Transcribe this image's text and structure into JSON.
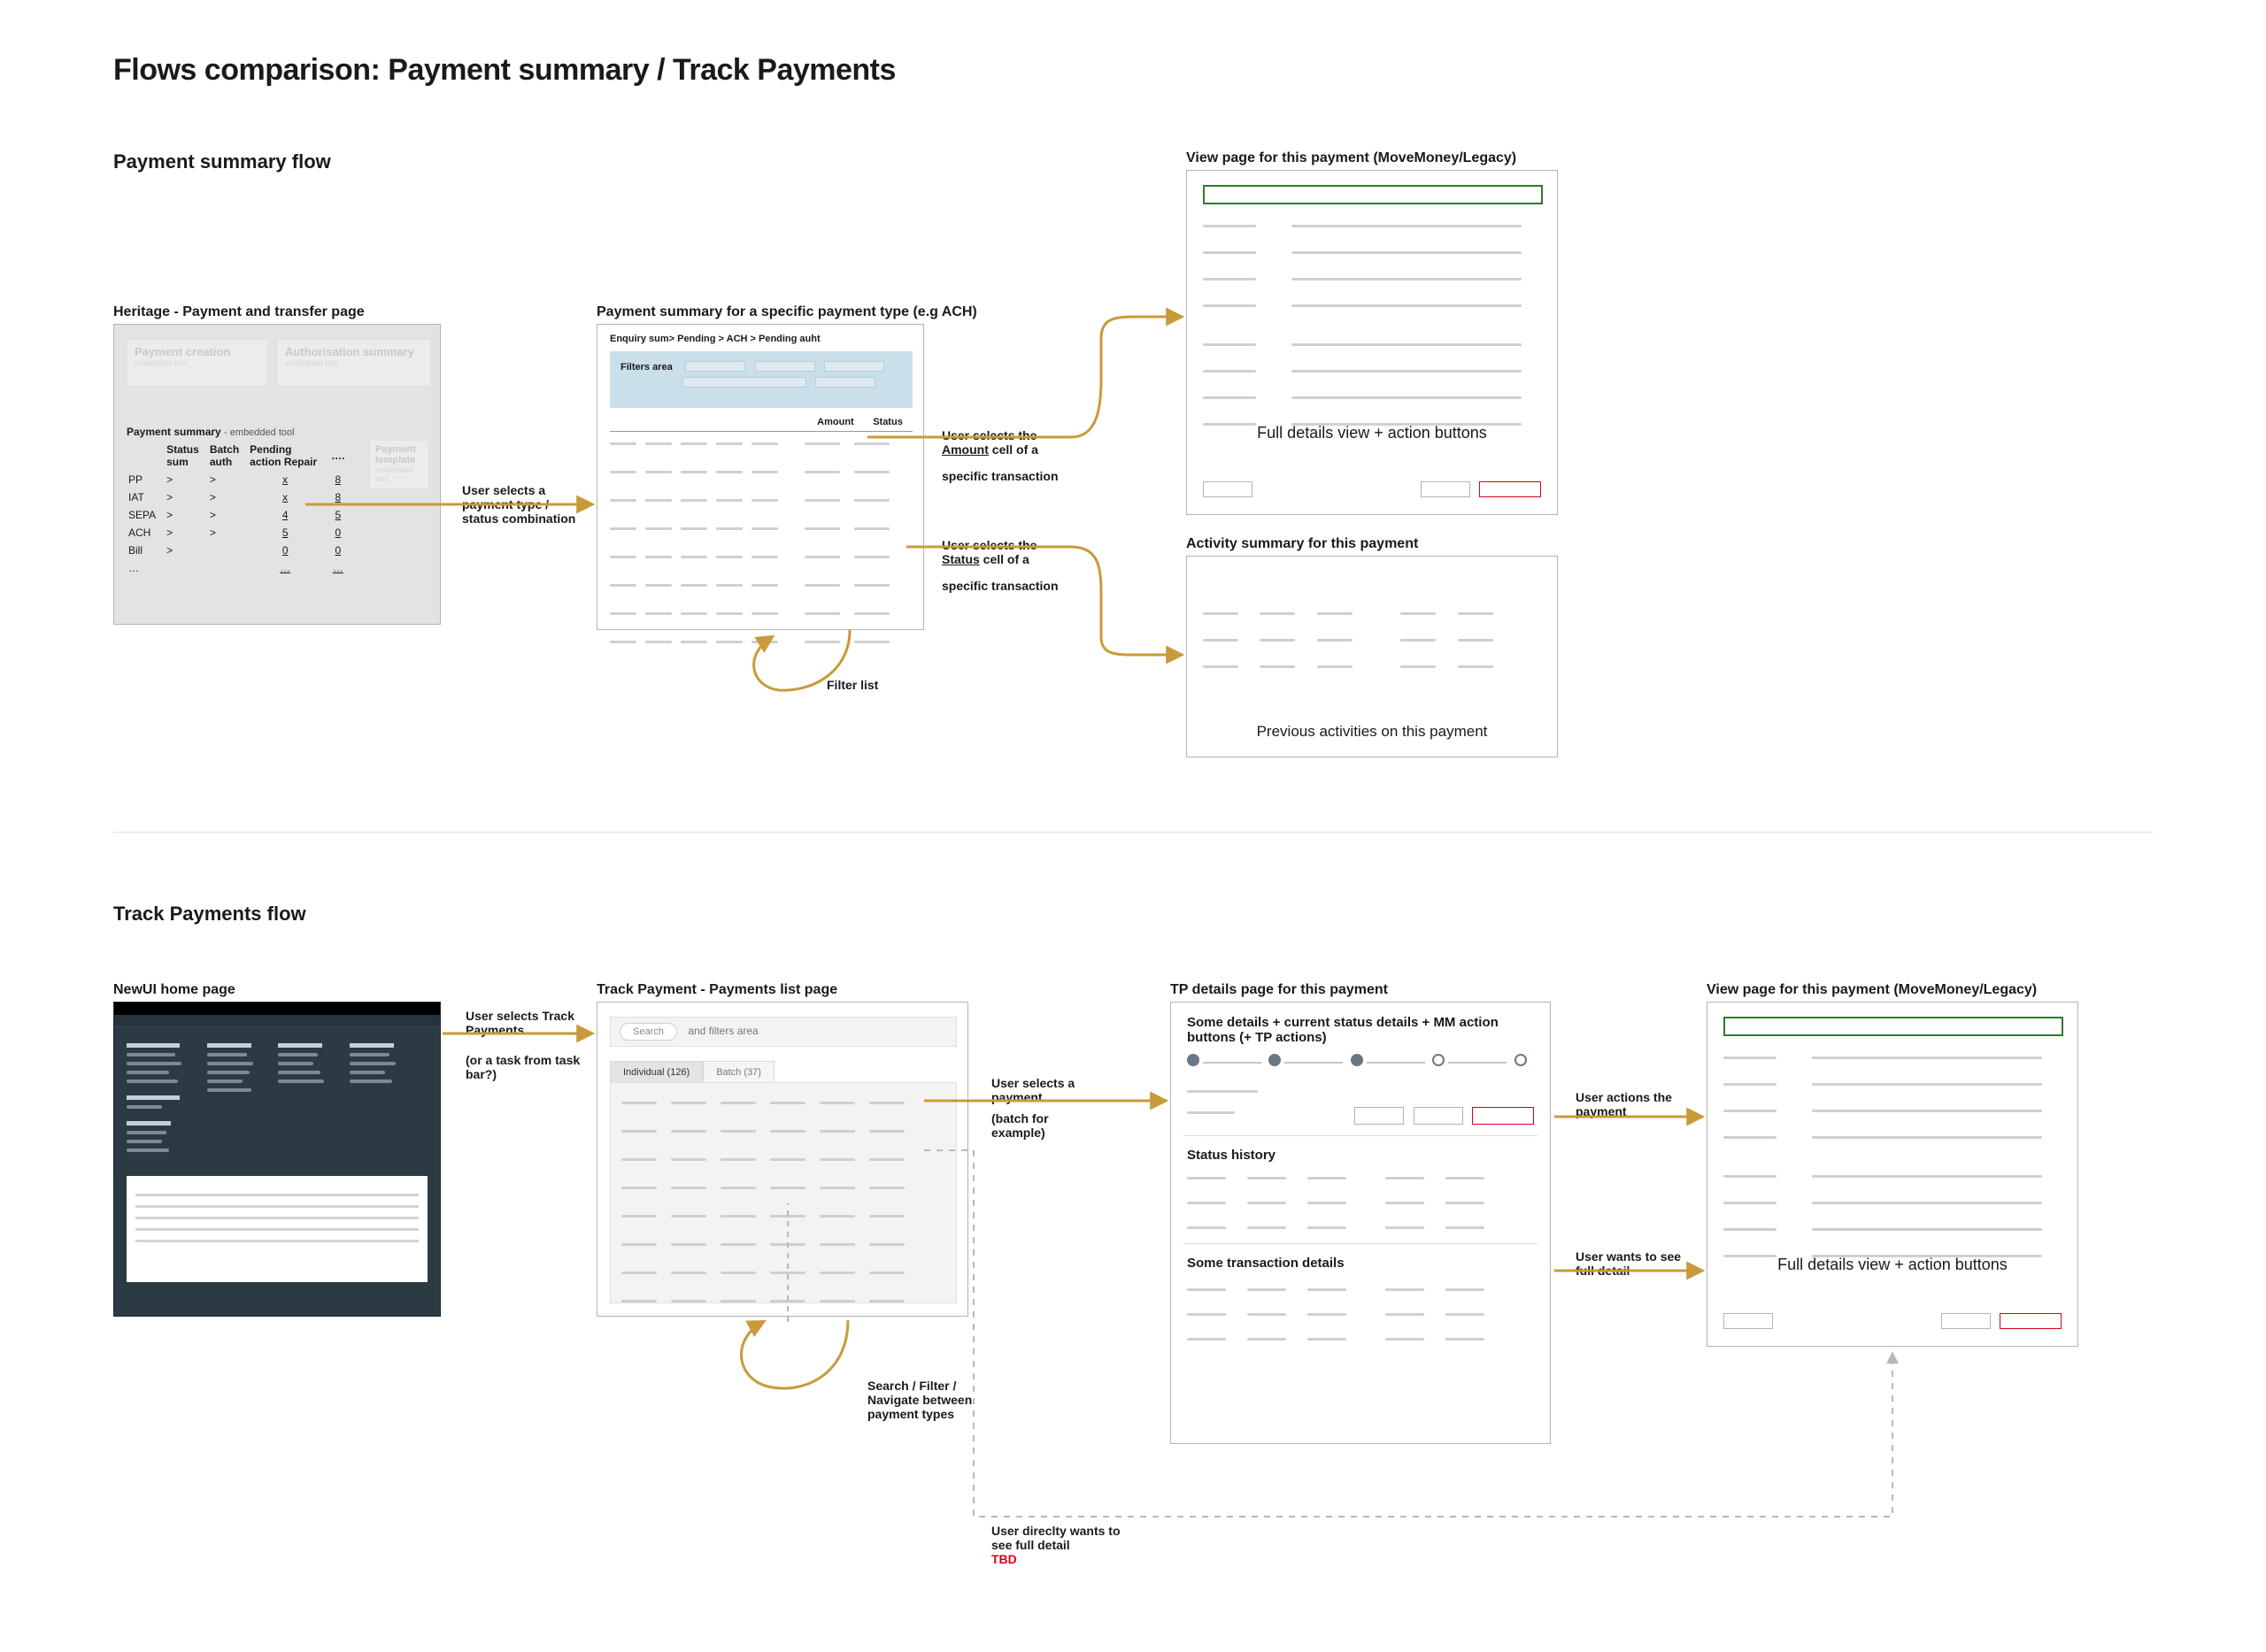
{
  "title": "Flows comparison:  Payment summary / Track Payments",
  "flow1": {
    "title": "Payment summary flow",
    "heritage": {
      "title": "Heritage - Payment and transfer page",
      "payment_creation": "Payment creation",
      "payment_creation_sub": "embedded tool",
      "auth_summary": "Authorisation summary",
      "auth_summary_sub": "embedded tool",
      "summary_title": "Payment summary",
      "summary_sub": "- embedded tool",
      "payment_template": "Payment template",
      "payment_template_sub": "embedded tool",
      "headers": [
        "",
        "Status sum",
        "Batch auth",
        "Pending action Repair",
        " …."
      ],
      "rows": [
        [
          "PP",
          ">",
          ">",
          "x",
          "8"
        ],
        [
          "IAT",
          ">",
          ">",
          "x",
          "8"
        ],
        [
          "SEPA",
          ">",
          ">",
          "4",
          "5"
        ],
        [
          "ACH",
          ">",
          ">",
          "5",
          "0"
        ],
        [
          "Bill",
          ">",
          "",
          "0",
          "0"
        ],
        [
          "…",
          "",
          "",
          "…",
          "…"
        ]
      ],
      "annot": "User selects a payment type / status combination"
    },
    "summary_page": {
      "title": "Payment summary for a specific payment type (e.g ACH)",
      "breadcrumb": "Enquiry sum> Pending > ACH > Pending auht",
      "filters_label": "Filters area",
      "col_amount": "Amount",
      "col_status": "Status",
      "annot_amount1": "User selects the",
      "annot_amount_link": "Amount",
      "annot_amount2": " cell of a",
      "annot_amount3": "specific transaction",
      "annot_status1": "User selects the",
      "annot_status_link": "Status",
      "annot_status2": " cell of a",
      "annot_status3": "specific transaction",
      "filter_list": "Filter list"
    },
    "view_page": {
      "title": "View page for this payment (MoveMoney/Legacy)",
      "caption": "Full details view + action buttons"
    },
    "activity_page": {
      "title": "Activity summary for this payment",
      "caption": "Previous activities on this payment"
    }
  },
  "flow2": {
    "title": "Track Payments flow",
    "home": {
      "title": "NewUI home page",
      "annot": "User selects Track Payments",
      "annot2": "(or a task from task bar?)"
    },
    "list_page": {
      "title": "Track Payment - Payments list page",
      "search_label": "Search",
      "search_rest": "and filters area",
      "tab_individual": "Individual (126)",
      "tab_batch": "Batch (37)",
      "annot": "User selects a payment",
      "annot2": "(batch for example)",
      "loop_annot": "Search / Filter / Navigate between payment types",
      "direct_annot": "User direclty wants to see full detail",
      "tbd": "TBD"
    },
    "tp_details": {
      "title": "TP details page for this payment",
      "some_details": "Some details + current status details + MM action buttons (+ TP actions)",
      "status_history": "Status history",
      "some_tx": "Some transaction details",
      "annot_action": "User actions the payment",
      "annot_full": "User wants to see full detail"
    },
    "view_page": {
      "title": "View page for this payment (MoveMoney/Legacy)",
      "caption": "Full details view + action buttons"
    }
  },
  "colors": {
    "arrow": "#c99a3a",
    "red": "#d9001b",
    "dashed": "#b8b8b8",
    "green": "#2e7b2e"
  }
}
